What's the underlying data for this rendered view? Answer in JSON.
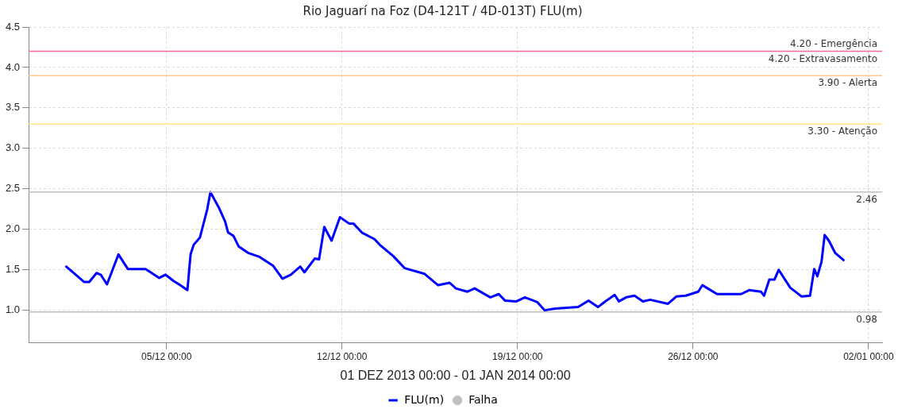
{
  "chart_data": {
    "type": "line",
    "title": "Rio Jaguarí na Foz (D4-121T / 4D-013T) FLU(m)",
    "xlabel": "01 DEZ 2013 00:00 - 01 JAN 2014 00:00",
    "xlim": [
      "2013-11-29T12:00",
      "2014-01-02T13:00"
    ],
    "xticks": [
      {
        "value": "2013-12-05T00:00",
        "label": "05/12 00:00"
      },
      {
        "value": "2013-12-12T00:00",
        "label": "12/12 00:00"
      },
      {
        "value": "2013-12-19T00:00",
        "label": "19/12 00:00"
      },
      {
        "value": "2013-12-26T00:00",
        "label": "26/12 00:00"
      },
      {
        "value": "2014-01-02T00:00",
        "label": "02/01 00:00"
      }
    ],
    "ylim": [
      0.6,
      4.5
    ],
    "yticks": [
      {
        "value": 1,
        "label": "1.0"
      },
      {
        "value": 1.5,
        "label": "1.5"
      },
      {
        "value": 2,
        "label": "2.0"
      },
      {
        "value": 2.5,
        "label": "2.5"
      },
      {
        "value": 3,
        "label": "3.0"
      },
      {
        "value": 3.5,
        "label": "3.5"
      },
      {
        "value": 4,
        "label": "4.0"
      },
      {
        "value": 4.5,
        "label": "4.5"
      }
    ],
    "annotations": [
      "4.20 - Emergência"
    ],
    "grid": true,
    "legend": "bottom",
    "marker": "none",
    "line_style": "solid",
    "series": [
      {
        "name": "FLU(m)",
        "color": "#0000ff",
        "x": [
          "2013-12-01T00:00",
          "2013-12-01T10:00",
          "2013-12-01T17:00",
          "2013-12-01T22:00",
          "2013-12-02T05:00",
          "2013-12-02T09:00",
          "2013-12-02T15:00",
          "2013-12-03T02:00",
          "2013-12-03T11:00",
          "2013-12-04T04:00",
          "2013-12-04T17:00",
          "2013-12-04T23:00",
          "2013-12-05T07:00",
          "2013-12-05T12:00",
          "2013-12-05T20:00",
          "2013-12-05T23:00",
          "2013-12-06T02:00",
          "2013-12-06T08:00",
          "2013-12-06T12:00",
          "2013-12-06T15:00",
          "2013-12-06T18:00",
          "2013-12-07T02:00",
          "2013-12-07T08:00",
          "2013-12-07T11:00",
          "2013-12-07T16:00",
          "2013-12-07T21:00",
          "2013-12-08T06:00",
          "2013-12-08T17:00",
          "2013-12-09T06:00",
          "2013-12-09T15:00",
          "2013-12-09T23:00",
          "2013-12-10T08:00",
          "2013-12-10T12:00",
          "2013-12-10T22:00",
          "2013-12-11T02:00",
          "2013-12-11T07:00",
          "2013-12-11T14:00",
          "2013-12-11T22:00",
          "2013-12-12T07:00",
          "2013-12-12T11:00",
          "2013-12-12T19:00",
          "2013-12-13T07:00",
          "2013-12-13T12:00",
          "2013-12-14T01:00",
          "2013-12-14T12:00",
          "2013-12-15T07:00",
          "2013-12-15T20:00",
          "2013-12-16T07:00",
          "2013-12-16T13:00",
          "2013-12-17T00:00",
          "2013-12-17T07:00",
          "2013-12-17T22:00",
          "2013-12-18T06:00",
          "2013-12-18T12:00",
          "2013-12-18T23:00",
          "2013-12-19T07:00",
          "2013-12-19T19:00",
          "2013-12-20T02:00",
          "2013-12-20T12:00",
          "2013-12-21T10:00",
          "2013-12-21T20:00",
          "2013-12-22T05:00",
          "2013-12-22T11:00",
          "2013-12-22T21:00",
          "2013-12-23T01:00",
          "2013-12-23T08:00",
          "2013-12-23T16:00",
          "2013-12-24T00:00",
          "2013-12-24T07:00",
          "2013-12-25T00:00",
          "2013-12-25T08:00",
          "2013-12-25T17:00",
          "2013-12-26T05:00",
          "2013-12-26T09:00",
          "2013-12-26T14:00",
          "2013-12-26T23:00",
          "2013-12-27T22:00",
          "2013-12-28T06:00",
          "2013-12-28T17:00",
          "2013-12-28T20:00",
          "2013-12-29T01:00",
          "2013-12-29T06:00",
          "2013-12-29T10:00",
          "2013-12-29T21:00",
          "2013-12-30T08:00",
          "2013-12-30T16:00",
          "2013-12-30T20:00",
          "2013-12-30T23:00",
          "2013-12-31T03:00",
          "2013-12-31T06:00",
          "2013-12-31T10:00",
          "2013-12-31T16:00",
          "2014-01-01T00:00"
        ],
        "values": [
          1.54,
          1.43,
          1.35,
          1.35,
          1.46,
          1.44,
          1.32,
          1.69,
          1.51,
          1.51,
          1.4,
          1.44,
          1.36,
          1.32,
          1.25,
          1.69,
          1.81,
          1.9,
          2.1,
          2.25,
          2.46,
          2.27,
          2.1,
          1.96,
          1.92,
          1.79,
          1.71,
          1.66,
          1.55,
          1.39,
          1.44,
          1.54,
          1.47,
          1.64,
          1.63,
          2.03,
          1.86,
          2.15,
          2.07,
          2.07,
          1.96,
          1.88,
          1.81,
          1.67,
          1.52,
          1.45,
          1.31,
          1.34,
          1.27,
          1.23,
          1.27,
          1.16,
          1.2,
          1.12,
          1.11,
          1.16,
          1.1,
          1.0,
          1.02,
          1.04,
          1.12,
          1.04,
          1.1,
          1.19,
          1.11,
          1.16,
          1.18,
          1.11,
          1.13,
          1.08,
          1.17,
          1.18,
          1.23,
          1.31,
          1.27,
          1.2,
          1.2,
          1.25,
          1.23,
          1.18,
          1.38,
          1.38,
          1.5,
          1.28,
          1.17,
          1.18,
          1.51,
          1.42,
          1.6,
          1.93,
          1.86,
          1.71,
          1.62
        ]
      },
      {
        "name": "Falha",
        "color": "#c0c0c0",
        "type": "scatter"
      }
    ],
    "ref_lines": [
      {
        "axis": "y",
        "value": 4.2,
        "label": "4.20 - Extravasamento",
        "color": "#ff6699"
      },
      {
        "axis": "y",
        "value": 3.9,
        "label": "3.90 - Alerta",
        "color": "#ffc896"
      },
      {
        "axis": "y",
        "value": 3.3,
        "label": "3.30 - Atenção",
        "color": "#ffe680"
      },
      {
        "axis": "y",
        "value": 2.46,
        "label": "2.46",
        "color": "#c0c0c0"
      },
      {
        "axis": "y",
        "value": 0.98,
        "label": "0.98",
        "color": "#c0c0c0"
      }
    ]
  }
}
